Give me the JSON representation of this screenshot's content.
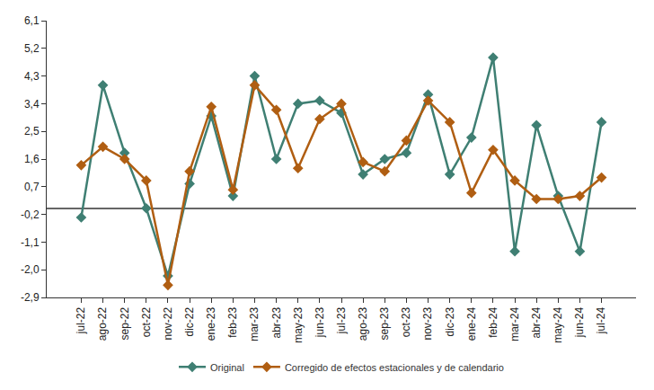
{
  "chart_data": {
    "type": "line",
    "categories": [
      "jul-22",
      "ago-22",
      "sep-22",
      "oct-22",
      "nov-22",
      "dic-22",
      "ene-23",
      "feb-23",
      "mar-23",
      "abr-23",
      "may-23",
      "jun-23",
      "jul-23",
      "ago-23",
      "sep-23",
      "oct-23",
      "nov-23",
      "dic-23",
      "ene-24",
      "feb-24",
      "mar-24",
      "abr-24",
      "may-24",
      "jun-24",
      "jul-24"
    ],
    "series": [
      {
        "name": "Original",
        "color": "#3f7f73",
        "marker": "diamond",
        "values": [
          -0.3,
          4.0,
          1.8,
          0.0,
          -2.2,
          0.8,
          3.0,
          0.4,
          4.3,
          1.6,
          3.4,
          3.5,
          3.1,
          1.1,
          1.6,
          1.8,
          3.7,
          1.1,
          2.3,
          4.9,
          -1.4,
          2.7,
          0.4,
          -1.4,
          2.8
        ]
      },
      {
        "name": "Corregido de efectos estacionales y de calendario",
        "color": "#b05e12",
        "marker": "diamond",
        "values": [
          1.4,
          2.0,
          1.6,
          0.9,
          -2.5,
          1.2,
          3.3,
          0.6,
          4.0,
          3.2,
          1.3,
          2.9,
          3.4,
          1.5,
          1.2,
          2.2,
          3.5,
          2.8,
          0.5,
          1.9,
          0.9,
          0.3,
          0.3,
          0.4,
          1.0
        ]
      }
    ],
    "ylim": [
      -2.9,
      6.1
    ],
    "yticks": [
      {
        "value": -2.9,
        "label": "-2,9"
      },
      {
        "value": -2.0,
        "label": "-2,0"
      },
      {
        "value": -1.1,
        "label": "-1,1"
      },
      {
        "value": -0.2,
        "label": "-0,2"
      },
      {
        "value": 0.7,
        "label": "0,7"
      },
      {
        "value": 1.6,
        "label": "1,6"
      },
      {
        "value": 2.5,
        "label": "2,5"
      },
      {
        "value": 3.4,
        "label": "3,4"
      },
      {
        "value": 4.3,
        "label": "4,3"
      },
      {
        "value": 5.2,
        "label": "5,2"
      },
      {
        "value": 6.1,
        "label": "6,1"
      }
    ],
    "grid": false,
    "legend": "bottom"
  }
}
